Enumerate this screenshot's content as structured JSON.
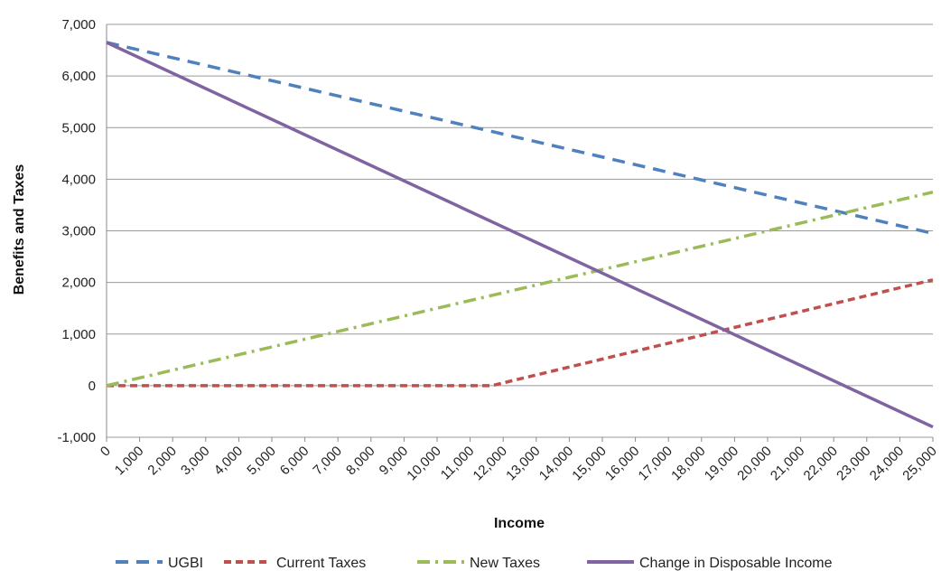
{
  "chart_data": {
    "type": "line",
    "xlabel": "Income",
    "ylabel": "Benefits and Taxes",
    "x": [
      0,
      1000,
      2000,
      3000,
      4000,
      5000,
      6000,
      7000,
      8000,
      9000,
      10000,
      11000,
      12000,
      13000,
      14000,
      15000,
      16000,
      17000,
      18000,
      19000,
      20000,
      21000,
      22000,
      23000,
      24000,
      25000
    ],
    "x_tick_labels": [
      "0",
      "1,000",
      "2,000",
      "3,000",
      "4,000",
      "5,000",
      "6,000",
      "7,000",
      "8,000",
      "9,000",
      "10,000",
      "11,000",
      "12,000",
      "13,000",
      "14,000",
      "15,000",
      "16,000",
      "17,000",
      "18,000",
      "19,000",
      "20,000",
      "21,000",
      "22,000",
      "23,000",
      "24,000",
      "25,000"
    ],
    "y_ticks": [
      -1000,
      0,
      1000,
      2000,
      3000,
      4000,
      5000,
      6000,
      7000
    ],
    "y_tick_labels": [
      "-1,000",
      "0",
      "1,000",
      "2,000",
      "3,000",
      "4,000",
      "5,000",
      "6,000",
      "7,000"
    ],
    "ylim": [
      -1000,
      7000
    ],
    "grid": "horizontal",
    "legend_position": "bottom",
    "series": [
      {
        "name": "UGBI",
        "color": "#4f81bd",
        "style": "dashed",
        "points": [
          [
            0,
            6650
          ],
          [
            25000,
            2950
          ]
        ]
      },
      {
        "name": "Current Taxes",
        "color": "#c0504d",
        "style": "short-dashed",
        "points": [
          [
            0,
            0
          ],
          [
            11650,
            0
          ],
          [
            25000,
            2050
          ]
        ]
      },
      {
        "name": "New Taxes",
        "color": "#9bbb59",
        "style": "dash-dot",
        "points": [
          [
            0,
            0
          ],
          [
            25000,
            3750
          ]
        ]
      },
      {
        "name": "Change in Disposable Income",
        "color": "#8064a2",
        "style": "solid",
        "points": [
          [
            0,
            6650
          ],
          [
            25000,
            -800
          ]
        ]
      }
    ]
  }
}
